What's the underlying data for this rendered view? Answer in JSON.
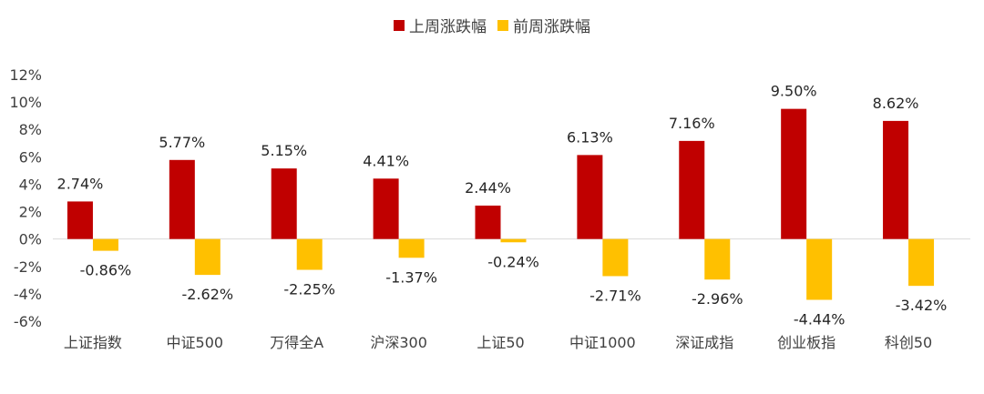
{
  "legend": {
    "items": [
      {
        "label": "上周涨跌幅",
        "color": "#C00000"
      },
      {
        "label": "前周涨跌幅",
        "color": "#FFC000"
      }
    ],
    "position": "top-center"
  },
  "chart_data": {
    "type": "bar",
    "title": "",
    "xlabel": "",
    "ylabel": "",
    "ylim": [
      -6,
      12
    ],
    "yticks": [
      "-6%",
      "-4%",
      "-2%",
      "0%",
      "2%",
      "4%",
      "6%",
      "8%",
      "10%",
      "12%"
    ],
    "grid": false,
    "categories": [
      "上证指数",
      "中证500",
      "万得全A",
      "沪深300",
      "上证50",
      "中证1000",
      "深证成指",
      "创业板指",
      "科创50"
    ],
    "series": [
      {
        "name": "上周涨跌幅",
        "color": "#C00000",
        "values": [
          2.74,
          5.77,
          5.15,
          4.41,
          2.44,
          6.13,
          7.16,
          9.5,
          8.62
        ],
        "labels": [
          "2.74%",
          "5.77%",
          "5.15%",
          "4.41%",
          "2.44%",
          "6.13%",
          "7.16%",
          "9.50%",
          "8.62%"
        ]
      },
      {
        "name": "前周涨跌幅",
        "color": "#FFC000",
        "values": [
          -0.86,
          -2.62,
          -2.25,
          -1.37,
          -0.24,
          -2.71,
          -2.96,
          -4.44,
          -3.42
        ],
        "labels": [
          "-0.86%",
          "-2.62%",
          "-2.25%",
          "-1.37%",
          "-0.24%",
          "-2.71%",
          "-2.96%",
          "-4.44%",
          "-3.42%"
        ]
      }
    ]
  }
}
